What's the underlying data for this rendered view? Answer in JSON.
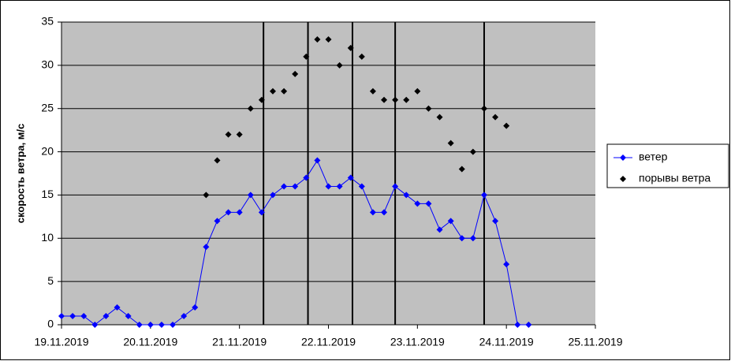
{
  "chart_data": {
    "type": "line",
    "y_label": "скорость ветра,  м/с",
    "x": [
      0,
      0.125,
      0.25,
      0.375,
      0.5,
      0.625,
      0.75,
      0.875,
      1,
      1.125,
      1.25,
      1.375,
      1.5,
      1.625,
      1.75,
      1.875,
      2,
      2.125,
      2.25,
      2.375,
      2.5,
      2.625,
      2.75,
      2.875,
      3,
      3.125,
      3.25,
      3.375,
      3.5,
      3.625,
      3.75,
      3.875,
      4,
      4.125,
      4.25,
      4.375,
      4.5,
      4.625,
      4.75,
      4.875,
      5,
      5.125,
      5.25
    ],
    "series": [
      {
        "name": "ветер",
        "color": "#0000ff",
        "line": true,
        "values": [
          1,
          1,
          1,
          0,
          1,
          2,
          1,
          0,
          0,
          0,
          0,
          1,
          2,
          9,
          12,
          13,
          13,
          15,
          13,
          15,
          16,
          16,
          17,
          19,
          16,
          16,
          17,
          16,
          13,
          13,
          16,
          15,
          14,
          14,
          11,
          12,
          10,
          10,
          15,
          12,
          7,
          0,
          0
        ]
      },
      {
        "name": "порывы ветра",
        "color": "#000000",
        "line": false,
        "values": [
          null,
          null,
          null,
          null,
          null,
          null,
          null,
          null,
          null,
          null,
          null,
          null,
          null,
          15,
          19,
          22,
          22,
          25,
          26,
          27,
          27,
          29,
          31,
          33,
          33,
          30,
          32,
          31,
          27,
          26,
          26,
          26,
          27,
          25,
          24,
          21,
          18,
          20,
          25,
          24,
          23,
          null,
          null
        ]
      }
    ],
    "vertical_lines": [
      2.27,
      2.77,
      3.27,
      3.75,
      4.75
    ],
    "xlim": [
      0,
      6
    ],
    "xticks": [
      {
        "value": 0,
        "label": "19.11.2019"
      },
      {
        "value": 1,
        "label": "20.11.2019"
      },
      {
        "value": 2,
        "label": "21.11.2019"
      },
      {
        "value": 3,
        "label": "22.11.2019"
      },
      {
        "value": 4,
        "label": "23.11.2019"
      },
      {
        "value": 5,
        "label": "24.11.2019"
      },
      {
        "value": 6,
        "label": "25.11.2019"
      }
    ],
    "ylim": [
      0,
      35
    ],
    "yticks": [
      0,
      5,
      10,
      15,
      20,
      25,
      30,
      35
    ],
    "grid": true
  }
}
